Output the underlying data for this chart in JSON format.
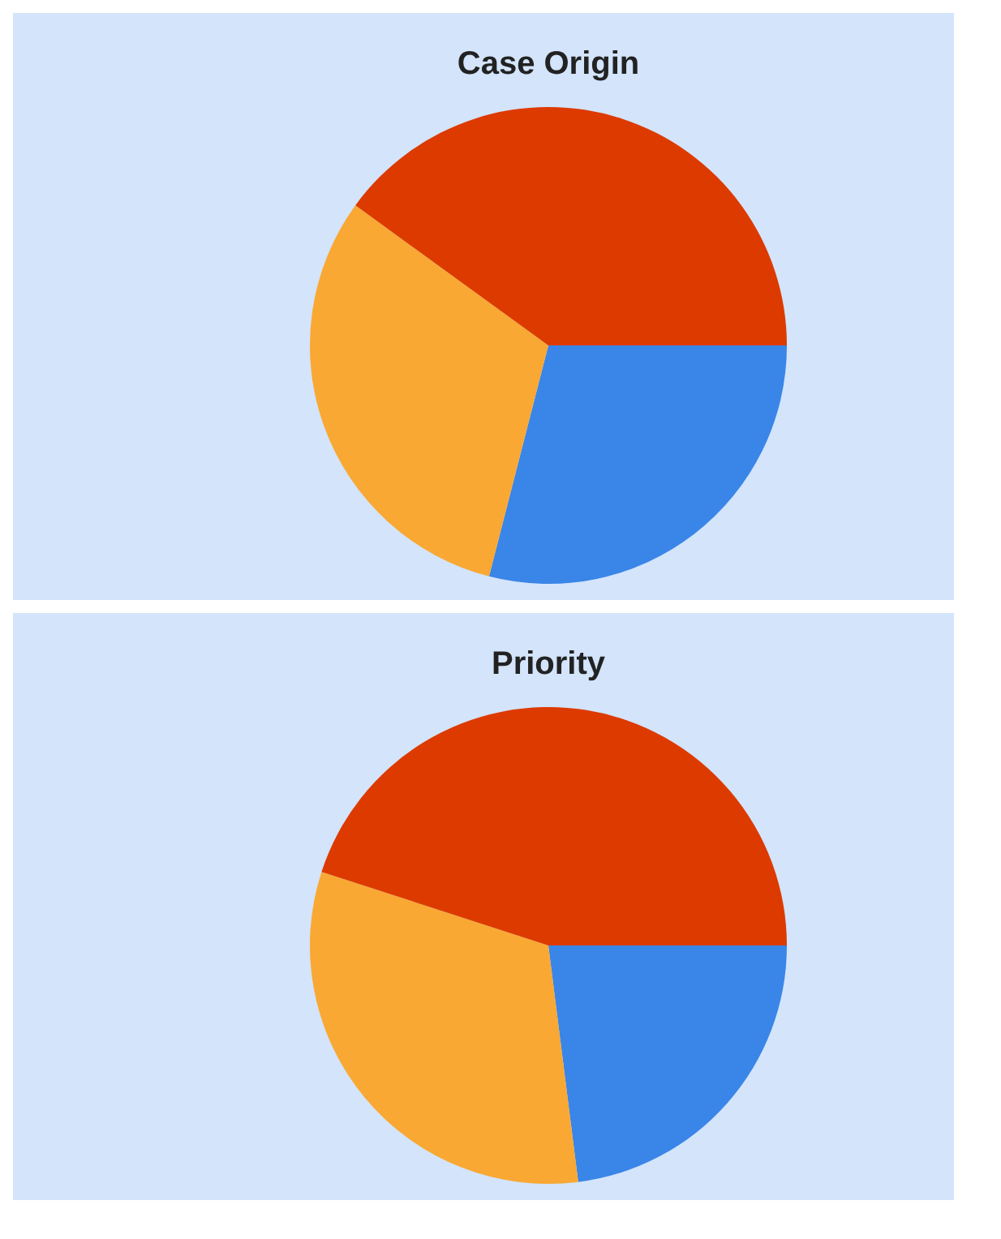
{
  "chart_data": [
    {
      "type": "pie",
      "title": "Case Origin",
      "categories": [
        null,
        null,
        null
      ],
      "values": [
        29,
        31,
        40
      ],
      "colors": [
        "#3a85e8",
        "#f9a833",
        "#dd3a00"
      ]
    },
    {
      "type": "pie",
      "title": "Priority",
      "categories": [
        null,
        null,
        null
      ],
      "values": [
        23,
        32,
        45
      ],
      "colors": [
        "#3a85e8",
        "#f9a833",
        "#dd3a00"
      ]
    }
  ]
}
